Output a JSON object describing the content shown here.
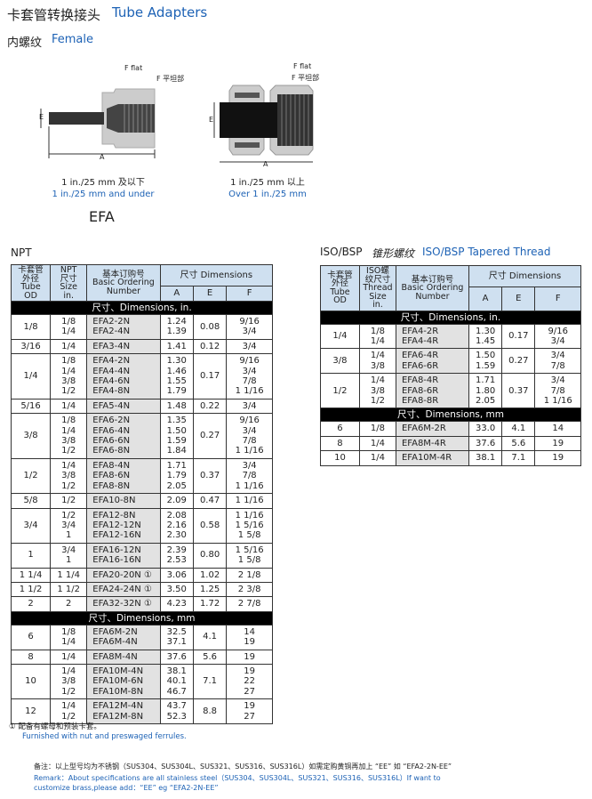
{
  "header": {
    "title_cn": "卡套管转换接头",
    "title_en": "Tube Adapters",
    "subtitle_cn": "内螺纹",
    "subtitle_en": "Female"
  },
  "diagrams": {
    "left": {
      "flat_en": "F flat",
      "flat_cn": "F 平坦部",
      "dim_e": "E",
      "dim_a": "A",
      "caption_cn": "1 in./25 mm 及以下",
      "caption_en": "1 in./25 mm and under"
    },
    "right": {
      "flat_en": "F flat",
      "flat_cn": "F 平坦部",
      "dim_e": "E",
      "dim_a": "A",
      "caption_cn": "1 in./25 mm 以上",
      "caption_en": "Over 1 in./25 mm"
    },
    "model": "EFA"
  },
  "npt": {
    "label": "NPT",
    "headers": {
      "od": "卡套管\n外径\nTube\nOD",
      "size": "NPT\n尺寸\nSize\nin.",
      "number": "基本订购号\nBasic Ordering\nNumber",
      "dims": "尺寸  Dimensions",
      "a": "A",
      "e": "E",
      "f": "F"
    },
    "sections": [
      {
        "band": "尺寸、Dimensions, in.",
        "groups": [
          {
            "od": "1/8",
            "size": [
              "1/8",
              "1/4"
            ],
            "number": [
              "EFA2-2N",
              "EFA2-4N"
            ],
            "a": [
              "1.24",
              "1.39"
            ],
            "e": "0.08",
            "f": [
              "9/16",
              "3/4"
            ]
          },
          {
            "od": "3/16",
            "size": [
              "1/4"
            ],
            "number": [
              "EFA3-4N"
            ],
            "a": [
              "1.41"
            ],
            "e": "0.12",
            "f": [
              "3/4"
            ]
          },
          {
            "od": "1/4",
            "size": [
              "1/8",
              "1/4",
              "3/8",
              "1/2"
            ],
            "number": [
              "EFA4-2N",
              "EFA4-4N",
              "EFA4-6N",
              "EFA4-8N"
            ],
            "a": [
              "1.30",
              "1.46",
              "1.55",
              "1.79"
            ],
            "e": "0.17",
            "f": [
              "9/16",
              "3/4",
              "7/8",
              "1 1/16"
            ]
          },
          {
            "od": "5/16",
            "size": [
              "1/4"
            ],
            "number": [
              "EFA5-4N"
            ],
            "a": [
              "1.48"
            ],
            "e": "0.22",
            "f": [
              "3/4"
            ]
          },
          {
            "od": "3/8",
            "size": [
              "1/8",
              "1/4",
              "3/8",
              "1/2"
            ],
            "number": [
              "EFA6-2N",
              "EFA6-4N",
              "EFA6-6N",
              "EFA6-8N"
            ],
            "a": [
              "1.35",
              "1.50",
              "1.59",
              "1.84"
            ],
            "e": "0.27",
            "f": [
              "9/16",
              "3/4",
              "7/8",
              "1 1/16"
            ]
          },
          {
            "od": "1/2",
            "size": [
              "1/4",
              "3/8",
              "1/2"
            ],
            "number": [
              "EFA8-4N",
              "EFA8-6N",
              "EFA8-8N"
            ],
            "a": [
              "1.71",
              "1.79",
              "2.05"
            ],
            "e": "0.37",
            "f": [
              "3/4",
              "7/8",
              "1 1/16"
            ]
          },
          {
            "od": "5/8",
            "size": [
              "1/2"
            ],
            "number": [
              "EFA10-8N"
            ],
            "a": [
              "2.09"
            ],
            "e": "0.47",
            "f": [
              "1 1/16"
            ]
          },
          {
            "od": "3/4",
            "size": [
              "1/2",
              "3/4",
              "1"
            ],
            "number": [
              "EFA12-8N",
              "EFA12-12N",
              "EFA12-16N"
            ],
            "a": [
              "2.08",
              "2.16",
              "2.30"
            ],
            "e": "0.58",
            "f": [
              "1 1/16",
              "1 5/16",
              "1 5/8"
            ]
          },
          {
            "od": "1",
            "size": [
              "3/4",
              "1"
            ],
            "number": [
              "EFA16-12N",
              "EFA16-16N"
            ],
            "a": [
              "2.39",
              "2.53"
            ],
            "e": "0.80",
            "f": [
              "1 5/16",
              "1 5/8"
            ]
          },
          {
            "od": "1 1/4",
            "size": [
              "1 1/4"
            ],
            "number": [
              "EFA20-20N ①"
            ],
            "a": [
              "3.06"
            ],
            "e": "1.02",
            "f": [
              "2 1/8"
            ]
          },
          {
            "od": "1 1/2",
            "size": [
              "1 1/2"
            ],
            "number": [
              "EFA24-24N ①"
            ],
            "a": [
              "3.50"
            ],
            "e": "1.25",
            "f": [
              "2 3/8"
            ]
          },
          {
            "od": "2",
            "size": [
              "2"
            ],
            "number": [
              "EFA32-32N ①"
            ],
            "a": [
              "4.23"
            ],
            "e": "1.72",
            "f": [
              "2 7/8"
            ]
          }
        ]
      },
      {
        "band": "尺寸、Dimensions, mm",
        "groups": [
          {
            "od": "6",
            "size": [
              "1/8",
              "1/4"
            ],
            "number": [
              "EFA6M-2N",
              "EFA6M-4N"
            ],
            "a": [
              "32.5",
              "37.1"
            ],
            "e": "4.1",
            "f": [
              "14",
              "19"
            ]
          },
          {
            "od": "8",
            "size": [
              "1/4"
            ],
            "number": [
              "EFA8M-4N"
            ],
            "a": [
              "37.6"
            ],
            "e": "5.6",
            "f": [
              "19"
            ]
          },
          {
            "od": "10",
            "size": [
              "1/4",
              "3/8",
              "1/2"
            ],
            "number": [
              "EFA10M-4N",
              "EFA10M-6N",
              "EFA10M-8N"
            ],
            "a": [
              "38.1",
              "40.1",
              "46.7"
            ],
            "e": "7.1",
            "f": [
              "19",
              "22",
              "27"
            ]
          },
          {
            "od": "12",
            "size": [
              "1/4",
              "1/2"
            ],
            "number": [
              "EFA12M-4N",
              "EFA12M-8N"
            ],
            "a": [
              "43.7",
              "52.3"
            ],
            "e": "8.8",
            "f": [
              "19",
              "27"
            ]
          }
        ]
      }
    ],
    "footnote_cn": "①  配备有螺母和预装卡套。",
    "footnote_en": "Furnished with nut and preswaged ferrules."
  },
  "iso": {
    "label_en": "ISO/BSP",
    "label_cn": "锥形螺纹",
    "label_blue": "ISO/BSP Tapered Thread",
    "headers": {
      "od": "卡套管\n外径\nTube\nOD",
      "size": "ISO螺\n纹尺寸\nThread\nSize\nin.",
      "number": "基本订购号\nBasic Ordering\nNumber",
      "dims": "尺寸  Dimensions",
      "a": "A",
      "e": "E",
      "f": "F"
    },
    "sections": [
      {
        "band": "尺寸、Dimensions, in.",
        "groups": [
          {
            "od": "1/4",
            "size": [
              "1/8",
              "1/4"
            ],
            "number": [
              "EFA4-2R",
              "EFA4-4R"
            ],
            "a": [
              "1.30",
              "1.45"
            ],
            "e": "0.17",
            "f": [
              "9/16",
              "3/4"
            ]
          },
          {
            "od": "3/8",
            "size": [
              "1/4",
              "3/8"
            ],
            "number": [
              "EFA6-4R",
              "EFA6-6R"
            ],
            "a": [
              "1.50",
              "1.59"
            ],
            "e": "0.27",
            "f": [
              "3/4",
              "7/8"
            ]
          },
          {
            "od": "1/2",
            "size": [
              "1/4",
              "3/8",
              "1/2"
            ],
            "number": [
              "EFA8-4R",
              "EFA8-6R",
              "EFA8-8R"
            ],
            "a": [
              "1.71",
              "1.80",
              "2.05"
            ],
            "e": "0.37",
            "f": [
              "3/4",
              "7/8",
              "1 1/16"
            ]
          }
        ]
      },
      {
        "band": "尺寸、Dimensions, mm",
        "groups": [
          {
            "od": "6",
            "size": [
              "1/8"
            ],
            "number": [
              "EFA6M-2R"
            ],
            "a": [
              "33.0"
            ],
            "e": "4.1",
            "f": [
              "14"
            ]
          },
          {
            "od": "8",
            "size": [
              "1/4"
            ],
            "number": [
              "EFA8M-4R"
            ],
            "a": [
              "37.6"
            ],
            "e": "5.6",
            "f": [
              "19"
            ]
          },
          {
            "od": "10",
            "size": [
              "1/4"
            ],
            "number": [
              "EFA10M-4R"
            ],
            "a": [
              "38.1"
            ],
            "e": "7.1",
            "f": [
              "19"
            ]
          }
        ]
      }
    ]
  },
  "remark": {
    "cn": "备注：以上型号均为不锈钢（SUS304、SUS304L、SUS321、SUS316、SUS316L）如需定购黄铜再加上 “EE” 如 “EFA2-2N-EE”",
    "en1": "Remark：About specifications are all stainless steel（SUS304、SUS304L、SUS321、SUS316、SUS316L）If want to",
    "en2": "customize brass,please add：“EE” eg “EFA2-2N-EE”"
  }
}
